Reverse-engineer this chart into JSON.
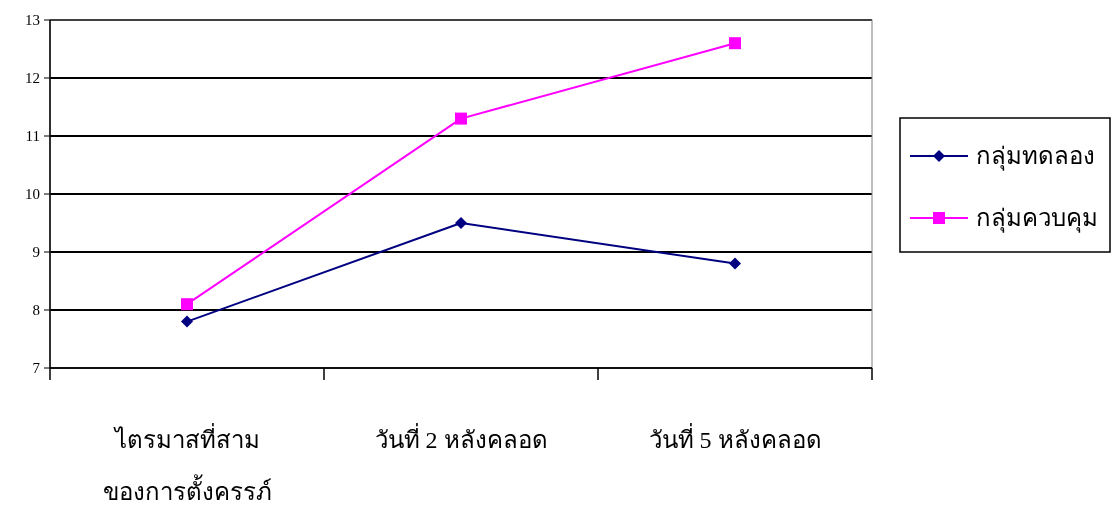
{
  "chart_data": {
    "type": "line",
    "categories": [
      "ไตรมาสที่สาม\nของการตั้งครรภ์",
      "วันที่ 2 หลังคลอด",
      "วันที่ 5 หลังคลอด"
    ],
    "series": [
      {
        "name": "กลุ่มทดลอง",
        "color": "#000080",
        "values": [
          7.8,
          9.5,
          8.8
        ],
        "marker": "diamond"
      },
      {
        "name": "กลุ่มควบคุม",
        "color": "#ff00ff",
        "values": [
          8.1,
          11.3,
          12.6
        ],
        "marker": "square"
      }
    ],
    "ylim": [
      7,
      13
    ],
    "yticks": [
      7,
      8,
      9,
      10,
      11,
      12,
      13
    ],
    "grid": "y",
    "legend": "right"
  }
}
